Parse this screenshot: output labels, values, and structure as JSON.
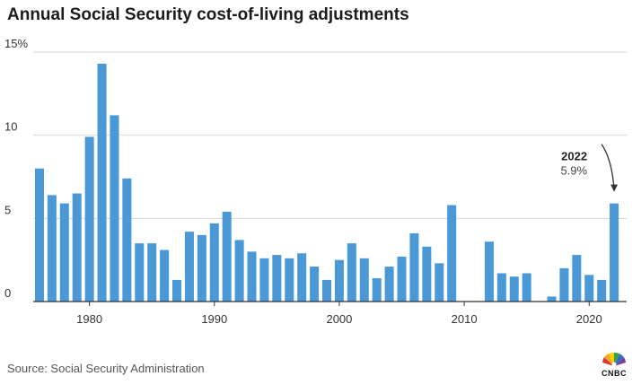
{
  "title": "Annual Social Security cost-of-living adjustments",
  "source": "Source: Social Security Administration",
  "brand": {
    "name": "CNBC",
    "icon": "peacock-logo-icon"
  },
  "annotation": {
    "year": "2022",
    "value": "5.9%",
    "target_year": 2022
  },
  "chart_data": {
    "type": "bar",
    "title": "Annual Social Security cost-of-living adjustments",
    "xlabel": "",
    "ylabel": "",
    "ylim": [
      0,
      15
    ],
    "xlim": [
      1975.5,
      2023
    ],
    "grid": true,
    "bar_color": "#4a98d6",
    "y_ticks": [
      0,
      5,
      10,
      15
    ],
    "y_tick_labels": [
      "0",
      "5",
      "10",
      "15%"
    ],
    "x_ticks": [
      1980,
      1990,
      2000,
      2010,
      2020
    ],
    "x_tick_labels": [
      "1980",
      "1990",
      "2000",
      "2010",
      "2020"
    ],
    "x": [
      1976,
      1977,
      1978,
      1979,
      1980,
      1981,
      1982,
      1983,
      1984,
      1985,
      1986,
      1987,
      1988,
      1989,
      1990,
      1991,
      1992,
      1993,
      1994,
      1995,
      1996,
      1997,
      1998,
      1999,
      2000,
      2001,
      2002,
      2003,
      2004,
      2005,
      2006,
      2007,
      2008,
      2009,
      2010,
      2011,
      2012,
      2013,
      2014,
      2015,
      2016,
      2017,
      2018,
      2019,
      2020,
      2021,
      2022
    ],
    "values": [
      8.0,
      6.4,
      5.9,
      6.5,
      9.9,
      14.3,
      11.2,
      7.4,
      3.5,
      3.5,
      3.1,
      1.3,
      4.2,
      4.0,
      4.7,
      5.4,
      3.7,
      3.0,
      2.6,
      2.8,
      2.6,
      2.9,
      2.1,
      1.3,
      2.5,
      3.5,
      2.6,
      1.4,
      2.1,
      2.7,
      4.1,
      3.3,
      2.3,
      5.8,
      0,
      0,
      3.6,
      1.7,
      1.5,
      1.7,
      0,
      0.3,
      2.0,
      2.8,
      1.6,
      1.3,
      5.9
    ]
  }
}
